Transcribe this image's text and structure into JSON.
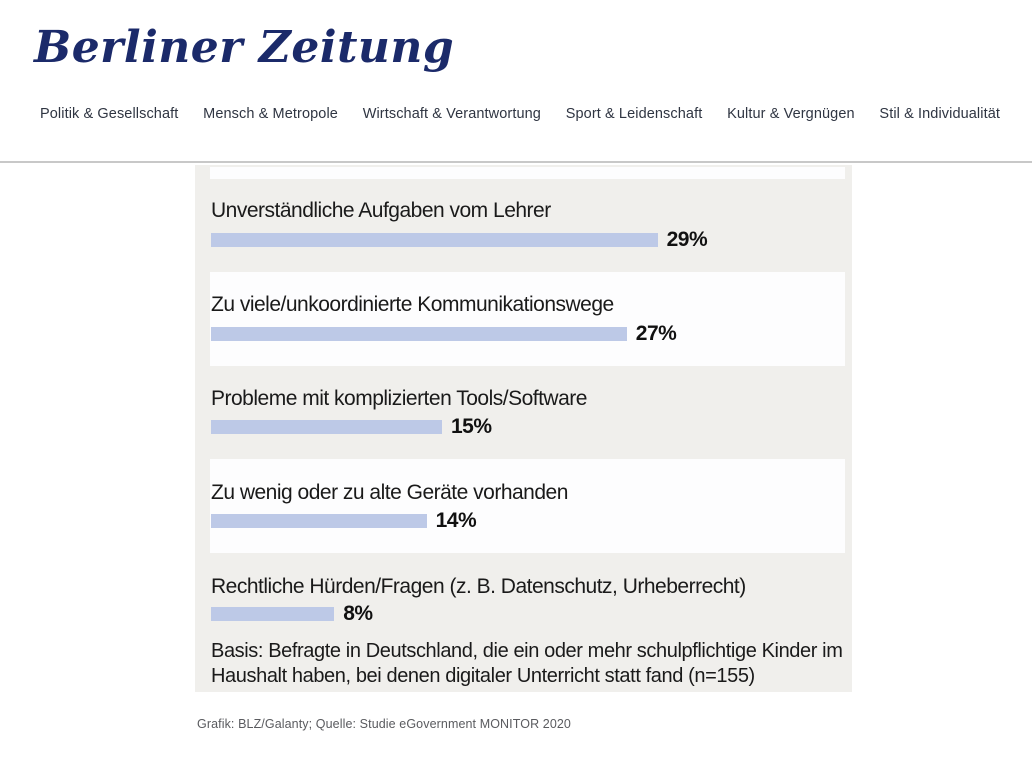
{
  "brand": {
    "logo_text": "Berliner Zeitung"
  },
  "nav": {
    "items": [
      {
        "label": "Politik & Gesellschaft"
      },
      {
        "label": "Mensch & Metropole"
      },
      {
        "label": "Wirtschaft & Verantwortung"
      },
      {
        "label": "Sport & Leidenschaft"
      },
      {
        "label": "Kultur & Vergnügen"
      },
      {
        "label": "Stil & Individualität"
      }
    ]
  },
  "chart_data": {
    "type": "bar",
    "orientation": "horizontal",
    "categories": [
      "Unverständliche Aufgaben vom Lehrer",
      "Zu viele/unkoordinierte Kommunikationswege",
      "Probleme mit komplizierten Tools/Software",
      "Zu wenig oder zu alte Geräte vorhanden",
      "Rechtliche Hürden/Fragen (z. B. Datenschutz, Urheberrecht)"
    ],
    "values": [
      29,
      27,
      15,
      14,
      8
    ],
    "value_labels": [
      "29%",
      "27%",
      "15%",
      "14%",
      "8%"
    ],
    "xlim": [
      0,
      41
    ],
    "grid": false,
    "legend": false,
    "note": "Basis: Befragte in Deutschland, die ein oder mehr schulpflichtige Kinder im Haushalt haben, bei denen digitaler Unterricht statt fand (n=155)",
    "bar_color": "#bdc9e7",
    "row_stripe_color": "#f0efec",
    "row_alt_color": "#fdfdfe"
  },
  "caption": {
    "text": "Grafik: BLZ/Galanty; Quelle: Studie eGovernment MONITOR 2020"
  },
  "colors": {
    "brand_navy": "#1b2a6a",
    "nav_text": "#2f3542",
    "header_divider": "#c8c8c8"
  }
}
